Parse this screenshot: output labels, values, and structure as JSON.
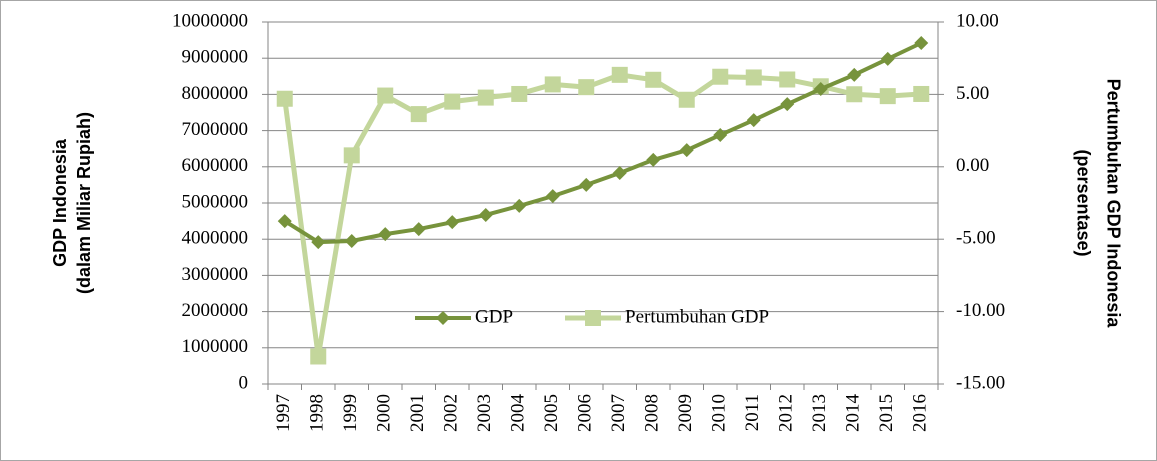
{
  "chart_data": {
    "type": "line",
    "categories": [
      "1997",
      "1998",
      "1999",
      "2000",
      "2001",
      "2002",
      "2003",
      "2004",
      "2005",
      "2006",
      "2007",
      "2008",
      "2009",
      "2010",
      "2011",
      "2012",
      "2013",
      "2014",
      "2015",
      "2016"
    ],
    "ylabel": [
      "GDP Indonesia",
      "(dalam Miliar Rupiah)"
    ],
    "y2label": [
      "Pertumbuhan GDP Indonesia",
      "(persentase)"
    ],
    "ylim": [
      0,
      10000000
    ],
    "yticks": [
      0,
      1000000,
      2000000,
      3000000,
      4000000,
      5000000,
      6000000,
      7000000,
      8000000,
      9000000,
      10000000
    ],
    "y2lim": [
      -15,
      10
    ],
    "y2ticks": [
      {
        "value": -15,
        "label": "-15.00"
      },
      {
        "value": -10,
        "label": "-10.00"
      },
      {
        "value": -5,
        "label": "-5.00"
      },
      {
        "value": 0,
        "label": "0.00"
      },
      {
        "value": 5,
        "label": "5.00"
      },
      {
        "value": 10,
        "label": "10.00"
      }
    ],
    "grid": true,
    "legend_position": "lower center",
    "series": [
      {
        "name": "GDP",
        "color": "#77933c",
        "marker": "diamond",
        "values": [
          4500000,
          3920000,
          3950000,
          4140000,
          4280000,
          4470000,
          4670000,
          4920000,
          5190000,
          5500000,
          5830000,
          6190000,
          6460000,
          6880000,
          7290000,
          7730000,
          8150000,
          8540000,
          8980000,
          9420000
        ]
      },
      {
        "name": "Pertumbuhan GDP",
        "color": "#c3d69b",
        "marker": "square",
        "axis": "y2",
        "values": [
          4.7,
          -13.1,
          0.79,
          4.92,
          3.64,
          4.5,
          4.78,
          5.03,
          5.69,
          5.5,
          6.35,
          6.01,
          4.63,
          6.22,
          6.17,
          6.03,
          5.56,
          5.01,
          4.88,
          5.03
        ]
      }
    ]
  }
}
